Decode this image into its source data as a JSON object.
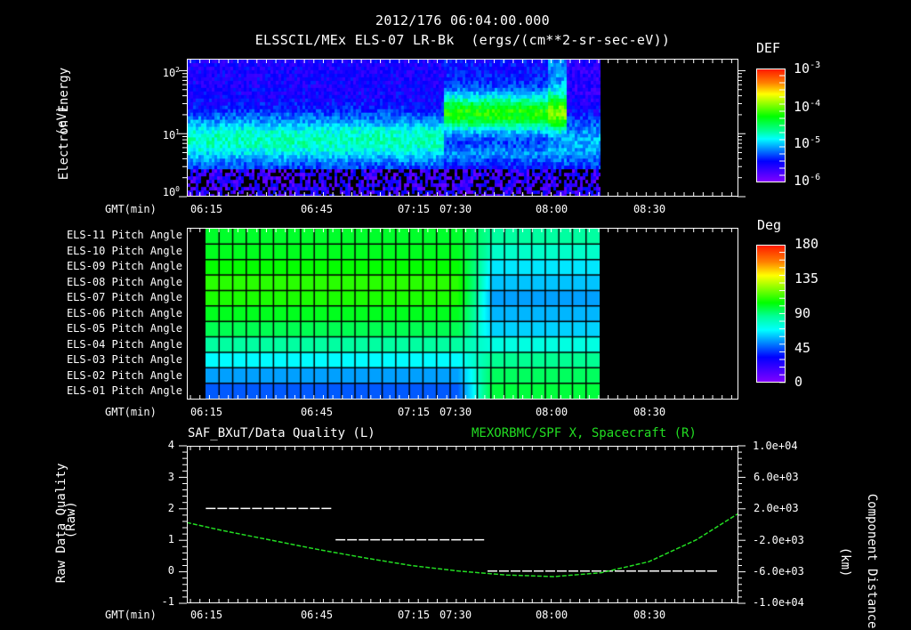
{
  "header": {
    "timestamp": "2012/176 06:04:00.000",
    "subtitle": "ELSSCIL/MEx ELS-07 LR-Bk  (ergs/(cm**2-sr-sec-eV))"
  },
  "colors": {
    "background": "#000000",
    "axes": "#ffffff",
    "spacecraft_line": "#22dd22",
    "quality_line": "#ffffff"
  },
  "time_axis": {
    "label": "GMT(min)",
    "start": "06:04",
    "end": "08:58",
    "ticks": [
      "06:15",
      "06:45",
      "07:15",
      "07:30",
      "08:00",
      "08:30"
    ]
  },
  "panel1": {
    "ylabel_line1": "Electron Energy",
    "ylabel_line2": "(eV)",
    "yticks": [
      "10^0",
      "10^1",
      "10^2"
    ],
    "colorbar": {
      "title": "DEF",
      "labels": [
        "10^-3",
        "10^-4",
        "10^-5",
        "10^-6"
      ]
    }
  },
  "panel2": {
    "rows": [
      "ELS-11 Pitch Angle",
      "ELS-10 Pitch Angle",
      "ELS-09 Pitch Angle",
      "ELS-08 Pitch Angle",
      "ELS-07 Pitch Angle",
      "ELS-06 Pitch Angle",
      "ELS-05 Pitch Angle",
      "ELS-04 Pitch Angle",
      "ELS-03 Pitch Angle",
      "ELS-02 Pitch Angle",
      "ELS-01 Pitch Angle"
    ],
    "colorbar": {
      "title": "Deg",
      "labels": [
        "180",
        "135",
        "90",
        "45",
        "0"
      ]
    }
  },
  "panel3": {
    "left_title": "SAF_BXuT/Data Quality (L)",
    "right_title": "MEXORBMC/SPF X, Spacecraft (R)",
    "ylabel_left_line1": "Raw Data Quality",
    "ylabel_left_line2": "(Raw)",
    "yticks_left": [
      "4",
      "3",
      "2",
      "1",
      "0",
      "-1"
    ],
    "ylabel_right_line1": "Component Distance",
    "ylabel_right_line2": "(km)",
    "yticks_right": [
      "1.0e+04",
      "6.0e+03",
      "2.0e+03",
      "-2.0e+03",
      "-6.0e+03",
      "-1.0e+04"
    ]
  },
  "chart_data": [
    {
      "type": "heatmap",
      "title": "ELSSCIL/MEx ELS-07 LR-Bk (ergs/(cm**2-sr-sec-eV))",
      "xlabel": "GMT(min)",
      "ylabel": "Electron Energy (eV)",
      "x_range": [
        "06:04",
        "08:58"
      ],
      "y_scale": "log",
      "ylim": [
        1,
        150
      ],
      "data_end": "08:13",
      "color_scale": {
        "label": "DEF",
        "min": 1e-06,
        "max": 0.001,
        "scale": "log"
      },
      "features": [
        {
          "time": "06:04-07:25",
          "energy_band_eV": [
            4,
            30
          ],
          "approx_DEF": 2e-05
        },
        {
          "time": "07:25-08:05",
          "energy_band_eV": [
            12,
            60
          ],
          "approx_DEF": 0.0001
        },
        {
          "time": "08:00-08:05",
          "energy_band_eV": [
            5,
            150
          ],
          "approx_DEF": 3e-05
        }
      ]
    },
    {
      "type": "heatmap",
      "title": "ELS Pitch Angle",
      "xlabel": "GMT(min)",
      "categories": [
        "ELS-11",
        "ELS-10",
        "ELS-09",
        "ELS-08",
        "ELS-07",
        "ELS-06",
        "ELS-05",
        "ELS-04",
        "ELS-03",
        "ELS-02",
        "ELS-01"
      ],
      "x_range": [
        "06:04",
        "08:58"
      ],
      "data_range": [
        "06:10",
        "08:13"
      ],
      "color_scale": {
        "label": "Deg",
        "min": 0,
        "max": 180
      },
      "approx_values_before_0735": [
        98,
        100,
        105,
        110,
        108,
        100,
        92,
        80,
        68,
        55,
        45
      ],
      "approx_values_after_0735": [
        80,
        75,
        65,
        60,
        55,
        58,
        62,
        72,
        82,
        90,
        95
      ]
    },
    {
      "type": "line",
      "title_left": "SAF_BXuT/Data Quality (L)",
      "title_right": "MEXORBMC/SPF X, Spacecraft (R)",
      "xlabel": "GMT(min)",
      "ylabel_left": "Raw Data Quality (Raw)",
      "ylabel_right": "Component Distance (km)",
      "ylim_left": [
        -1,
        4
      ],
      "ylim_right": [
        -10000,
        10000
      ],
      "series": [
        {
          "name": "Data Quality",
          "axis": "left",
          "x": [
            "06:10",
            "06:30",
            "06:50",
            "06:51",
            "07:10",
            "07:30",
            "07:38",
            "07:39",
            "08:00",
            "08:20",
            "08:52"
          ],
          "values": [
            2,
            2,
            2,
            1,
            1,
            1,
            1,
            0,
            0,
            0,
            0
          ]
        },
        {
          "name": "SPF X Spacecraft",
          "axis": "right",
          "x": [
            "06:04",
            "06:15",
            "06:30",
            "06:45",
            "07:00",
            "07:15",
            "07:30",
            "07:45",
            "08:00",
            "08:15",
            "08:30",
            "08:45",
            "08:58"
          ],
          "values": [
            200,
            -800,
            -2000,
            -3200,
            -4300,
            -5300,
            -6000,
            -6500,
            -6700,
            -6200,
            -4800,
            -2000,
            1300
          ]
        }
      ]
    }
  ]
}
